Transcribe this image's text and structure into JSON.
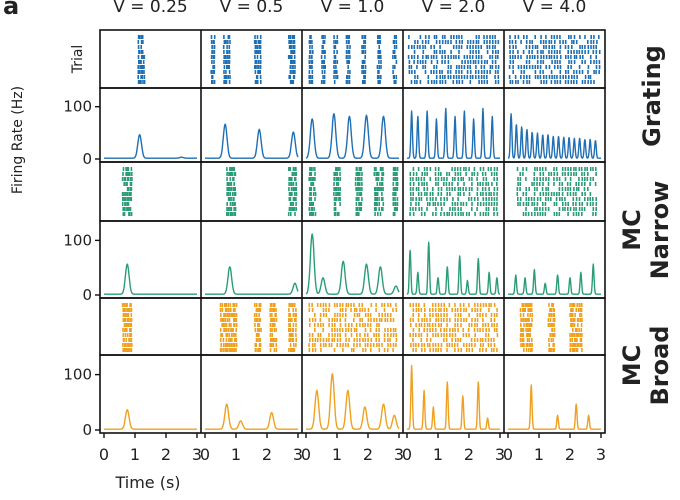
{
  "panel_letter": "a",
  "velocity_labels": [
    "V = 0.25",
    "V = 0.5",
    "V = 1.0",
    "V = 2.0",
    "V = 4.0"
  ],
  "row_labels": [
    "Grating",
    "MC\nNarrow",
    "MC\nBroad"
  ],
  "colors": {
    "Grating": "#1f6fb4",
    "MC Narrow": "#2a9d78",
    "MC Broad": "#f0a020"
  },
  "ylabel_rate": "Firing Rate (Hz)",
  "ylabel_raster": "Trial",
  "xlabel": "Time (s)",
  "chart_data": {
    "type": "line",
    "title": "",
    "xlabel": "Time (s)",
    "ylabel": "Firing Rate (Hz)",
    "xlim": [
      0,
      3
    ],
    "ylim": [
      0,
      130
    ],
    "x_ticks": [
      "0",
      "1",
      "2",
      "3"
    ],
    "y_ticks": [
      "0",
      "100"
    ],
    "velocities": [
      "V = 0.25",
      "V = 0.5",
      "V = 1.0",
      "V = 2.0",
      "V = 4.0"
    ],
    "stimuli": [
      "Grating",
      "MC Narrow",
      "MC Broad"
    ],
    "series": [
      {
        "name": "Grating",
        "velocity": "V = 0.25",
        "peaks": [
          [
            1.15,
            45
          ],
          [
            2.5,
            2
          ]
        ]
      },
      {
        "name": "Grating",
        "velocity": "V = 0.5",
        "peaks": [
          [
            0.65,
            65
          ],
          [
            1.75,
            55
          ],
          [
            2.85,
            50
          ]
        ]
      },
      {
        "name": "Grating",
        "velocity": "V = 1.0",
        "peaks": [
          [
            0.2,
            75
          ],
          [
            0.9,
            85
          ],
          [
            1.4,
            80
          ],
          [
            1.95,
            82
          ],
          [
            2.5,
            80
          ]
        ]
      },
      {
        "name": "Grating",
        "velocity": "V = 2.0",
        "peaks": [
          [
            0.15,
            90
          ],
          [
            0.35,
            80
          ],
          [
            0.65,
            90
          ],
          [
            0.95,
            75
          ],
          [
            1.25,
            95
          ],
          [
            1.55,
            80
          ],
          [
            1.85,
            90
          ],
          [
            2.15,
            75
          ],
          [
            2.45,
            95
          ],
          [
            2.75,
            80
          ]
        ]
      },
      {
        "name": "Grating",
        "velocity": "V = 4.0",
        "peaks": [
          [
            0.1,
            85
          ],
          [
            0.27,
            65
          ],
          [
            0.44,
            60
          ],
          [
            0.61,
            55
          ],
          [
            0.78,
            50
          ],
          [
            0.95,
            48
          ],
          [
            1.12,
            45
          ],
          [
            1.29,
            45
          ],
          [
            1.46,
            42
          ],
          [
            1.63,
            42
          ],
          [
            1.8,
            40
          ],
          [
            1.97,
            40
          ],
          [
            2.14,
            38
          ],
          [
            2.31,
            38
          ],
          [
            2.48,
            36
          ],
          [
            2.65,
            36
          ],
          [
            2.82,
            34
          ]
        ]
      },
      {
        "name": "MC Narrow",
        "velocity": "V = 0.25",
        "peaks": [
          [
            0.75,
            55
          ]
        ]
      },
      {
        "name": "MC Narrow",
        "velocity": "V = 0.5",
        "peaks": [
          [
            0.8,
            50
          ],
          [
            2.9,
            20
          ]
        ]
      },
      {
        "name": "MC Narrow",
        "velocity": "V = 1.0",
        "peaks": [
          [
            0.2,
            110
          ],
          [
            0.55,
            30
          ],
          [
            1.2,
            60
          ],
          [
            1.95,
            55
          ],
          [
            2.4,
            50
          ],
          [
            2.9,
            15
          ]
        ]
      },
      {
        "name": "MC Narrow",
        "velocity": "V = 2.0",
        "peaks": [
          [
            0.1,
            80
          ],
          [
            0.35,
            40
          ],
          [
            0.7,
            95
          ],
          [
            1.0,
            30
          ],
          [
            1.3,
            50
          ],
          [
            1.7,
            70
          ],
          [
            1.95,
            25
          ],
          [
            2.3,
            65
          ],
          [
            2.65,
            40
          ],
          [
            2.9,
            30
          ]
        ]
      },
      {
        "name": "MC Narrow",
        "velocity": "V = 4.0",
        "peaks": [
          [
            0.25,
            35
          ],
          [
            0.55,
            30
          ],
          [
            0.85,
            45
          ],
          [
            1.2,
            20
          ],
          [
            1.6,
            35
          ],
          [
            2.0,
            30
          ],
          [
            2.35,
            40
          ],
          [
            2.75,
            55
          ]
        ]
      },
      {
        "name": "MC Broad",
        "velocity": "V = 0.25",
        "peaks": [
          [
            0.75,
            35
          ]
        ]
      },
      {
        "name": "MC Broad",
        "velocity": "V = 0.5",
        "peaks": [
          [
            0.7,
            45
          ],
          [
            1.15,
            15
          ],
          [
            2.15,
            30
          ]
        ]
      },
      {
        "name": "MC Broad",
        "velocity": "V = 1.0",
        "peaks": [
          [
            0.35,
            70
          ],
          [
            0.85,
            100
          ],
          [
            1.35,
            70
          ],
          [
            1.9,
            40
          ],
          [
            2.5,
            45
          ],
          [
            2.85,
            25
          ]
        ]
      },
      {
        "name": "MC Broad",
        "velocity": "V = 2.0",
        "peaks": [
          [
            0.15,
            115
          ],
          [
            0.55,
            70
          ],
          [
            0.85,
            40
          ],
          [
            1.3,
            85
          ],
          [
            1.8,
            60
          ],
          [
            2.3,
            85
          ],
          [
            2.6,
            20
          ]
        ]
      },
      {
        "name": "MC Broad",
        "velocity": "V = 4.0",
        "peaks": [
          [
            0.75,
            80
          ],
          [
            1.6,
            25
          ],
          [
            2.2,
            45
          ],
          [
            2.6,
            25
          ]
        ]
      }
    ],
    "raster_bands_s": {
      "Grating": [
        [
          [
            1.1,
            1.3
          ]
        ],
        [
          [
            0.2,
            0.3
          ],
          [
            0.6,
            0.8
          ],
          [
            1.6,
            1.8
          ],
          [
            2.7,
            2.9
          ]
        ],
        [
          [
            0.1,
            0.2
          ],
          [
            0.5,
            0.6
          ],
          [
            0.9,
            1.0
          ],
          [
            1.3,
            1.4
          ],
          [
            1.8,
            1.9
          ],
          [
            2.3,
            2.4
          ],
          [
            2.8,
            2.9
          ]
        ],
        [
          [
            0.05,
            2.95
          ]
        ],
        [
          [
            0.05,
            2.95
          ]
        ]
      ],
      "MC Narrow": [
        [
          [
            0.6,
            0.9
          ]
        ],
        [
          [
            0.7,
            1.0
          ],
          [
            2.7,
            2.95
          ]
        ],
        [
          [
            0.1,
            0.3
          ],
          [
            0.9,
            1.1
          ],
          [
            1.6,
            1.8
          ],
          [
            2.2,
            2.5
          ],
          [
            2.8,
            2.95
          ]
        ],
        [
          [
            0.1,
            2.9
          ]
        ],
        [
          [
            0.3,
            2.9
          ]
        ]
      ],
      "MC Broad": [
        [
          [
            0.6,
            0.9
          ]
        ],
        [
          [
            0.5,
            1.0
          ],
          [
            1.6,
            1.8
          ],
          [
            2.1,
            2.3
          ],
          [
            2.7,
            2.95
          ]
        ],
        [
          [
            0.1,
            2.9
          ]
        ],
        [
          [
            0.1,
            2.9
          ]
        ],
        [
          [
            0.4,
            0.8
          ],
          [
            1.3,
            1.5
          ],
          [
            2.0,
            2.4
          ]
        ]
      ]
    }
  }
}
